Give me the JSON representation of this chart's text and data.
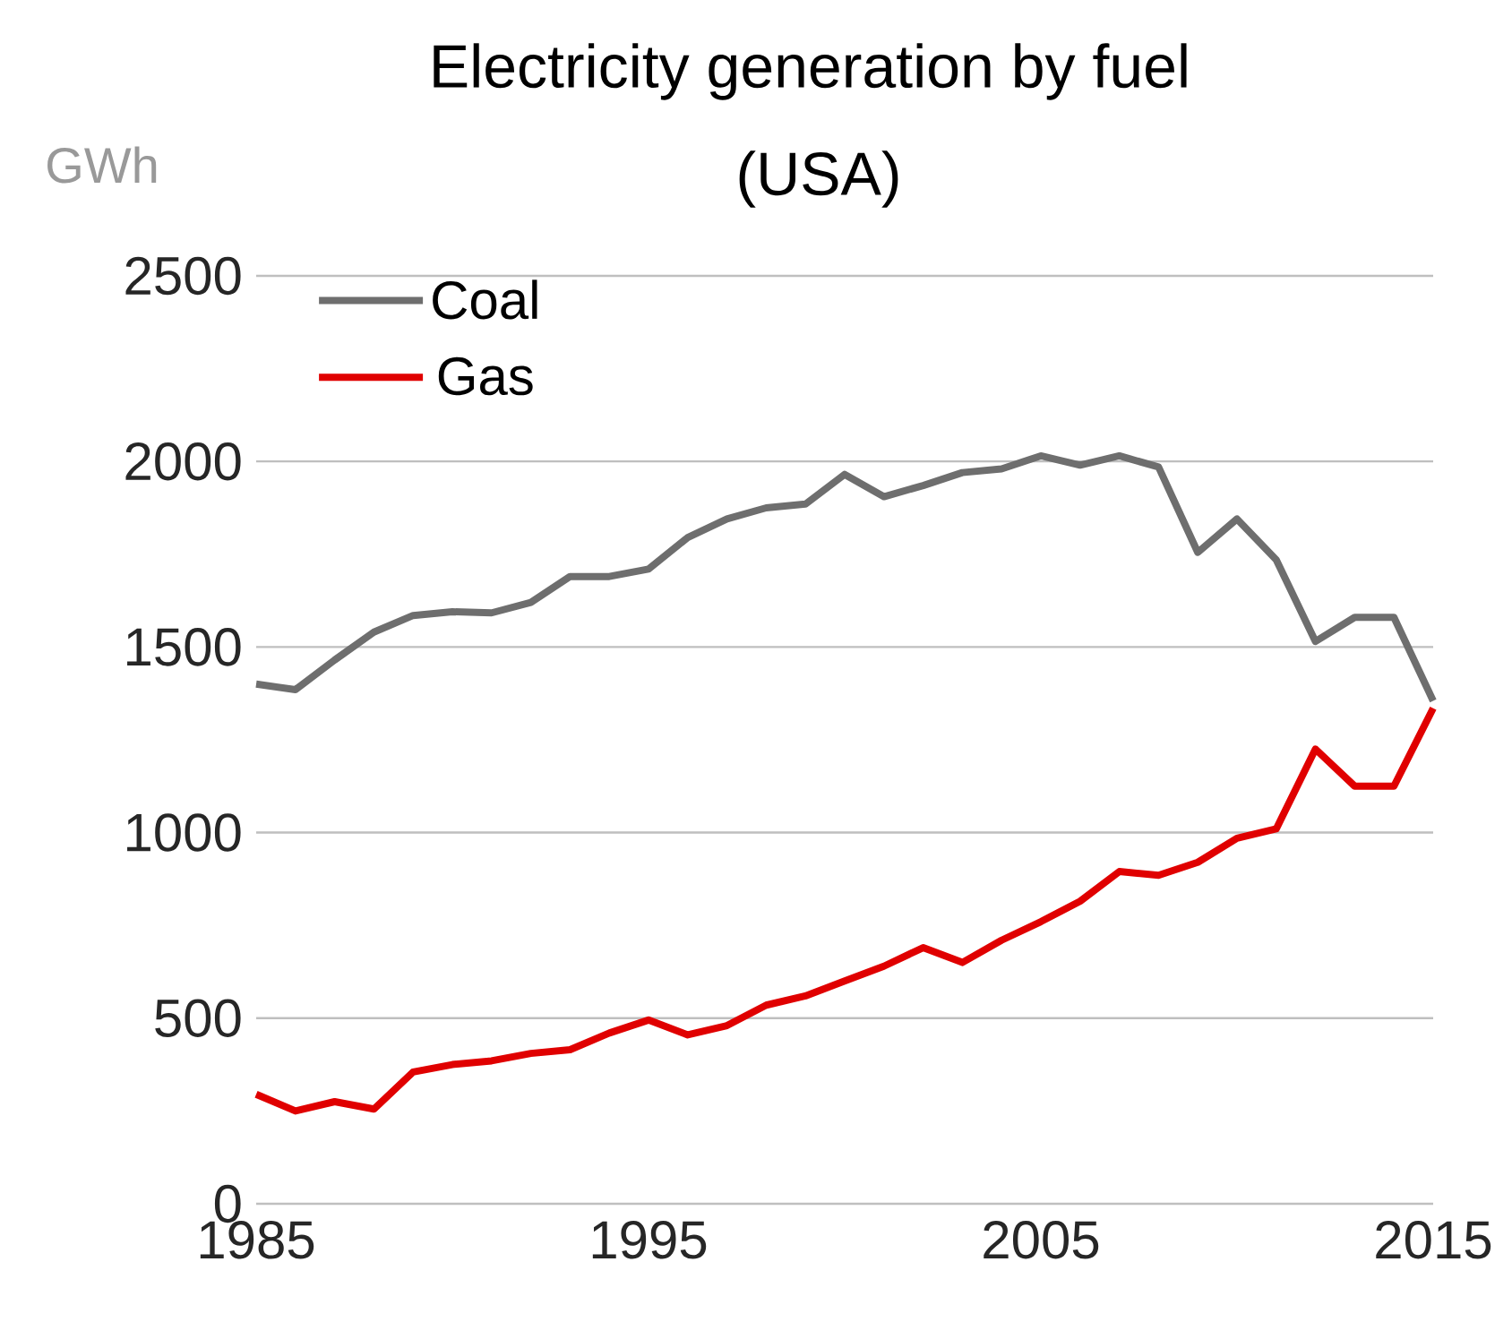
{
  "chart_data": {
    "type": "line",
    "title": "Electricity generation by fuel",
    "subtitle": "(USA)",
    "ylabel": "GWh",
    "x": [
      1985,
      1986,
      1987,
      1988,
      1989,
      1990,
      1991,
      1992,
      1993,
      1994,
      1995,
      1996,
      1997,
      1998,
      1999,
      2000,
      2001,
      2002,
      2003,
      2004,
      2005,
      2006,
      2007,
      2008,
      2009,
      2010,
      2011,
      2012,
      2013,
      2014,
      2015
    ],
    "series": [
      {
        "name": "Coal",
        "color": "#6e6e6e",
        "values": [
          1400,
          1385,
          1465,
          1540,
          1585,
          1595,
          1592,
          1620,
          1690,
          1690,
          1710,
          1795,
          1845,
          1875,
          1885,
          1965,
          1905,
          1935,
          1970,
          1980,
          2015,
          1990,
          2015,
          1985,
          1755,
          1845,
          1735,
          1515,
          1580,
          1580,
          1355
        ]
      },
      {
        "name": "Gas",
        "color": "#e00000",
        "values": [
          295,
          250,
          275,
          255,
          355,
          375,
          385,
          405,
          415,
          460,
          495,
          455,
          480,
          535,
          560,
          600,
          640,
          690,
          650,
          710,
          760,
          815,
          895,
          885,
          920,
          985,
          1010,
          1225,
          1125,
          1125,
          1335
        ]
      }
    ],
    "xlim": [
      1985,
      2015
    ],
    "xticks": [
      1985,
      1995,
      2005,
      2015
    ],
    "ylim": [
      0,
      2500
    ],
    "yticks": [
      0,
      500,
      1000,
      1500,
      2000,
      2500
    ],
    "grid": "y",
    "legend": "top left",
    "marker": "none",
    "line_style": "solid"
  }
}
